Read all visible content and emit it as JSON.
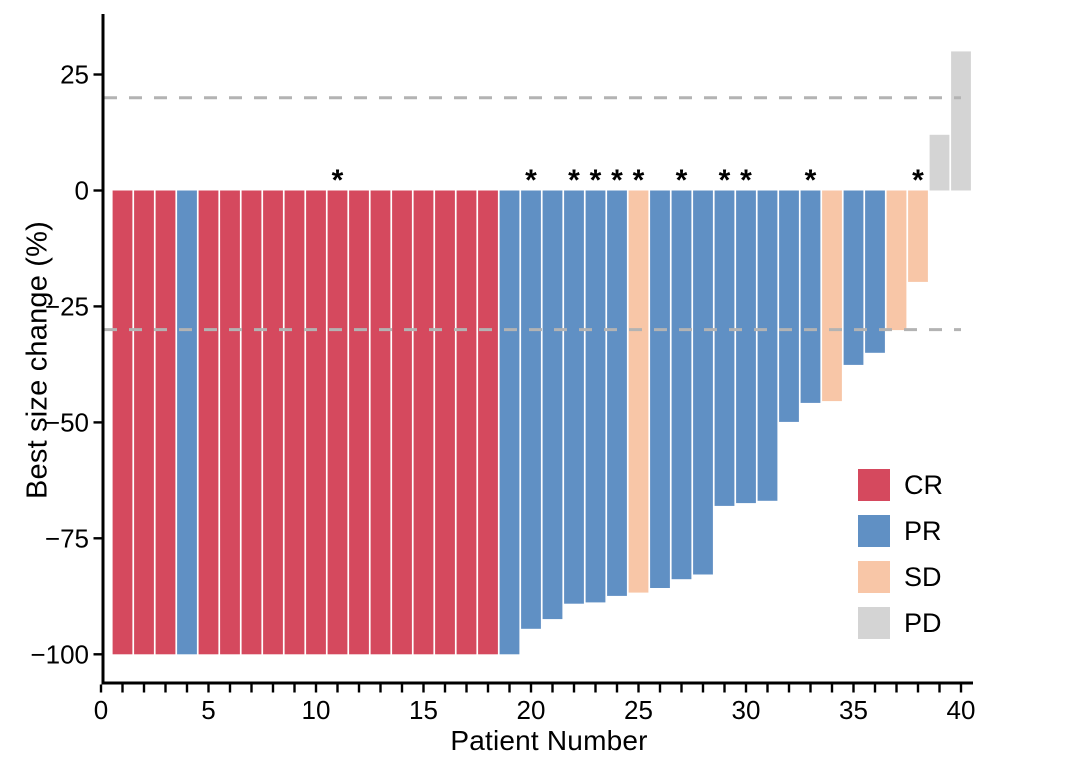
{
  "figure": {
    "background": "#ffffff"
  },
  "chart_data": {
    "type": "bar",
    "subtype": "waterfall",
    "title": "",
    "xlabel": "Patient Number",
    "ylabel": "Best size change (%)",
    "x_ticks_labeled": [
      0,
      5,
      10,
      15,
      20,
      25,
      30,
      35,
      40
    ],
    "x_minor_tick_every": 1,
    "x_range": [
      0,
      40.6
    ],
    "ylim": [
      -106,
      38
    ],
    "grid": false,
    "y_ticks": [
      {
        "value": 25,
        "label": "25"
      },
      {
        "value": 0,
        "label": "0"
      },
      {
        "value": -25,
        "label": "−25"
      },
      {
        "value": -50,
        "label": "−50"
      },
      {
        "value": -75,
        "label": "−75"
      },
      {
        "value": -100,
        "label": "−100"
      }
    ],
    "reference_lines": [
      {
        "name": "upper",
        "value": 20,
        "style": "dashed",
        "color": "#b3b3b3"
      },
      {
        "name": "lower",
        "value": -30,
        "style": "dashed",
        "color": "#b3b3b3"
      }
    ],
    "annotation_symbol": "*",
    "starred_patients": [
      11,
      20,
      22,
      23,
      24,
      25,
      27,
      29,
      30,
      33,
      38
    ],
    "series_colors": {
      "CR": "#d5495e",
      "PR": "#6090c4",
      "SD": "#f8c6a7",
      "PD": "#d4d4d4"
    },
    "patients": [
      {
        "n": 1,
        "change": -100,
        "response": "CR",
        "star": false
      },
      {
        "n": 2,
        "change": -100,
        "response": "CR",
        "star": false
      },
      {
        "n": 3,
        "change": -100,
        "response": "CR",
        "star": false
      },
      {
        "n": 4,
        "change": -100,
        "response": "PR",
        "star": false
      },
      {
        "n": 5,
        "change": -100,
        "response": "CR",
        "star": false
      },
      {
        "n": 6,
        "change": -100,
        "response": "CR",
        "star": false
      },
      {
        "n": 7,
        "change": -100,
        "response": "CR",
        "star": false
      },
      {
        "n": 8,
        "change": -100,
        "response": "CR",
        "star": false
      },
      {
        "n": 9,
        "change": -100,
        "response": "CR",
        "star": false
      },
      {
        "n": 10,
        "change": -100,
        "response": "CR",
        "star": false
      },
      {
        "n": 11,
        "change": -100,
        "response": "CR",
        "star": true
      },
      {
        "n": 12,
        "change": -100,
        "response": "CR",
        "star": false
      },
      {
        "n": 13,
        "change": -100,
        "response": "CR",
        "star": false
      },
      {
        "n": 14,
        "change": -100,
        "response": "CR",
        "star": false
      },
      {
        "n": 15,
        "change": -100,
        "response": "CR",
        "star": false
      },
      {
        "n": 16,
        "change": -100,
        "response": "CR",
        "star": false
      },
      {
        "n": 17,
        "change": -100,
        "response": "CR",
        "star": false
      },
      {
        "n": 18,
        "change": -100,
        "response": "CR",
        "star": false
      },
      {
        "n": 19,
        "change": -100,
        "response": "PR",
        "star": false
      },
      {
        "n": 20,
        "change": -94.5,
        "response": "PR",
        "star": true
      },
      {
        "n": 21,
        "change": -92.4,
        "response": "PR",
        "star": false
      },
      {
        "n": 22,
        "change": -89.1,
        "response": "PR",
        "star": true
      },
      {
        "n": 23,
        "change": -88.8,
        "response": "PR",
        "star": true
      },
      {
        "n": 24,
        "change": -87.4,
        "response": "PR",
        "star": true
      },
      {
        "n": 25,
        "change": -86.7,
        "response": "SD",
        "star": true
      },
      {
        "n": 26,
        "change": -85.7,
        "response": "PR",
        "star": false
      },
      {
        "n": 27,
        "change": -83.8,
        "response": "PR",
        "star": true
      },
      {
        "n": 28,
        "change": -82.8,
        "response": "PR",
        "star": false
      },
      {
        "n": 29,
        "change": -68,
        "response": "PR",
        "star": true
      },
      {
        "n": 30,
        "change": -67.4,
        "response": "PR",
        "star": true
      },
      {
        "n": 31,
        "change": -66.9,
        "response": "PR",
        "star": false
      },
      {
        "n": 32,
        "change": -49.9,
        "response": "PR",
        "star": false
      },
      {
        "n": 33,
        "change": -45.8,
        "response": "PR",
        "star": true
      },
      {
        "n": 34,
        "change": -45.4,
        "response": "SD",
        "star": false
      },
      {
        "n": 35,
        "change": -37.6,
        "response": "PR",
        "star": false
      },
      {
        "n": 36,
        "change": -35,
        "response": "PR",
        "star": false
      },
      {
        "n": 37,
        "change": -30.1,
        "response": "SD",
        "star": false
      },
      {
        "n": 38,
        "change": -19.7,
        "response": "SD",
        "star": true
      },
      {
        "n": 39,
        "change": 12,
        "response": "PD",
        "star": false
      },
      {
        "n": 40,
        "change": 30,
        "response": "PD",
        "star": false
      }
    ]
  },
  "legend": {
    "position": "inside-right",
    "items": [
      {
        "label": "CR",
        "color": "#d5495e"
      },
      {
        "label": "PR",
        "color": "#6090c4"
      },
      {
        "label": "SD",
        "color": "#f8c6a7"
      },
      {
        "label": "PD",
        "color": "#d4d4d4"
      }
    ]
  }
}
